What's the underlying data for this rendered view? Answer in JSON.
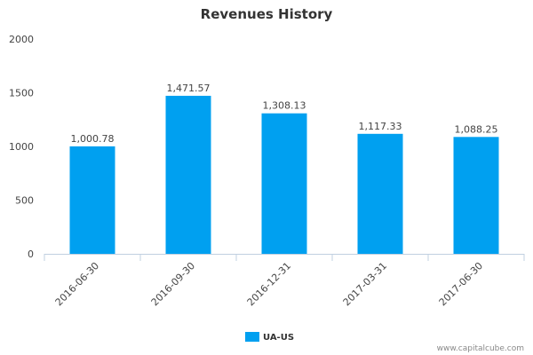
{
  "chart_data": {
    "type": "bar",
    "title": "Revenues History",
    "categories": [
      "2016-06-30",
      "2016-09-30",
      "2016-12-31",
      "2017-03-31",
      "2017-06-30"
    ],
    "series": [
      {
        "name": "UA-US",
        "values": [
          1000.78,
          1471.57,
          1308.13,
          1117.33,
          1088.25
        ],
        "labels": [
          "1,000.78",
          "1,471.57",
          "1,308.13",
          "1,117.33",
          "1,088.25"
        ],
        "color": "#00a0f0"
      }
    ],
    "ylim": [
      0,
      2000
    ],
    "yticks": [
      0,
      500,
      1000,
      1500,
      2000
    ],
    "grid": false,
    "legend_position": "bottom-center"
  },
  "credit": "www.capitalcube.com"
}
